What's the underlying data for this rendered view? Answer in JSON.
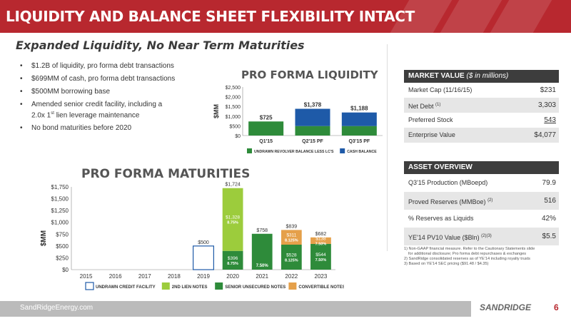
{
  "slide": {
    "title": "LIQUIDITY AND BALANCE SHEET FLEXIBILITY INTACT",
    "subtitle": "Expanded Liquidity, No Near Term Maturities",
    "bullets": [
      {
        "text": "$1.2B of liquidity, pro forma debt transactions"
      },
      {
        "text": "$699MM of cash, pro forma debt transactions"
      },
      {
        "text": "$500MM borrowing base"
      },
      {
        "text_pre": "Amended senior credit facility, including a",
        "text_a": "2.0x 1",
        "text_sup": "st",
        "text_b": " lien leverage maintenance"
      },
      {
        "text": "No bond maturities before 2020"
      }
    ],
    "footer": {
      "site": "SandRidgeEnergy.com",
      "logo": "SANDRIDGE",
      "page": "6"
    }
  },
  "market_value": {
    "header": "MARKET VALUE",
    "header_unit": "($ in millions)",
    "rows": [
      {
        "label": "Market Cap (11/16/15)",
        "sup": "",
        "value": "$231"
      },
      {
        "label": "Net Debt",
        "sup": "(1)",
        "value": "3,303"
      },
      {
        "label": "Preferred Stock",
        "sup": "",
        "value": "543"
      },
      {
        "label": "Enterprise Value",
        "sup": "",
        "value": "$4,077"
      }
    ]
  },
  "asset_overview": {
    "header": "ASSET OVERVIEW",
    "rows": [
      {
        "label": "Q3'15 Production (MBoepd)",
        "sup": "",
        "value": "79.9"
      },
      {
        "label": "Proved Reserves (MMBoe)",
        "sup": "(2)",
        "value": "516"
      },
      {
        "label": "% Reserves as Liquids",
        "sup": "",
        "value": "42%"
      },
      {
        "label": "YE'14 PV10 Value ($Bln)",
        "sup": "(2)(3)",
        "value": "$5.5"
      }
    ]
  },
  "notes": [
    "1) Non-GAAP financial measure. Refer to the Cautionary Statements slide",
    "    for additional disclosure; Pro forma debt repurchases & exchanges",
    "2) SandRidge consolidated reserves as of YE'14 including royalty trusts",
    "3) Based on YE'14 SEC pricing ($91.48 / $4.35)"
  ],
  "colors": {
    "red": "#b8282f",
    "green_dark": "#2e8b3a",
    "green_light": "#9ccc3c",
    "blue": "#1e5aa8",
    "orange": "#e5a04a",
    "panel": "#3d3d3d"
  },
  "chart_data": [
    {
      "type": "bar",
      "title": "PRO FORMA LIQUIDITY",
      "ylabel": "$MM",
      "ylim": [
        0,
        2500
      ],
      "yticks": [
        "$0",
        "$500",
        "$1,000",
        "$1,500",
        "$2,000",
        "$2,500"
      ],
      "categories": [
        "Q1'15",
        "Q2'15 PF",
        "Q3'15 PF"
      ],
      "series": [
        {
          "name": "UNDRAWN REVOLVER BALANCE LESS LC'S",
          "values": [
            725,
            489,
            489
          ],
          "color": "#2e8b3a"
        },
        {
          "name": "CASH BALANCE",
          "values": [
            0,
            889,
            699
          ],
          "color": "#1e5aa8"
        }
      ],
      "totals": [
        "$725",
        "$1,378",
        "$1,188"
      ]
    },
    {
      "type": "bar",
      "title": "PRO FORMA MATURITIES",
      "ylabel": "$MM",
      "ylim": [
        0,
        1750
      ],
      "yticks": [
        "$0",
        "$250",
        "$500",
        "$750",
        "$1,000",
        "$1,250",
        "$1,500",
        "$1,750"
      ],
      "categories": [
        "2015",
        "2016",
        "2017",
        "2018",
        "2019",
        "2020",
        "2021",
        "2022",
        "2023"
      ],
      "series": [
        {
          "name": "UNDRAWN CREDIT FACILITY",
          "values": [
            0,
            0,
            0,
            0,
            500,
            0,
            0,
            0,
            0
          ],
          "color": "#1e5aa8"
        },
        {
          "name": "2ND LIEN NOTES",
          "values": [
            0,
            0,
            0,
            0,
            0,
            1328,
            0,
            0,
            0
          ],
          "color": "#9ccc3c"
        },
        {
          "name": "SENIOR UNSECURED NOTES",
          "values": [
            0,
            0,
            0,
            0,
            0,
            396,
            758,
            528,
            544
          ],
          "color": "#2e8b3a"
        },
        {
          "name": "CONVERTIBLE NOTES",
          "values": [
            0,
            0,
            0,
            0,
            0,
            0,
            0,
            311,
            138
          ],
          "color": "#e5a04a"
        }
      ],
      "segment_labels": [
        {
          "year": "2020",
          "series": "SENIOR UNSECURED NOTES",
          "value": "$396",
          "rate": "8.75%"
        },
        {
          "year": "2020",
          "series": "2ND LIEN NOTES",
          "value": "$1,328",
          "rate": "8.75%"
        },
        {
          "year": "2021",
          "series": "SENIOR UNSECURED NOTES",
          "value": "",
          "rate": "7.50%"
        },
        {
          "year": "2022",
          "series": "SENIOR UNSECURED NOTES",
          "value": "$528",
          "rate": "8.125%"
        },
        {
          "year": "2022",
          "series": "CONVERTIBLE NOTES",
          "value": "$311",
          "rate": "8.125%"
        },
        {
          "year": "2023",
          "series": "SENIOR UNSECURED NOTES",
          "value": "$544",
          "rate": "7.50%"
        },
        {
          "year": "2023",
          "series": "CONVERTIBLE NOTES",
          "value": "$138",
          "rate": "7.50%"
        }
      ],
      "totals": [
        {
          "year": "2019",
          "label": "$500"
        },
        {
          "year": "2020",
          "label": "$1,724"
        },
        {
          "year": "2021",
          "label": "$758"
        },
        {
          "year": "2022",
          "label": "$839"
        },
        {
          "year": "2023",
          "label": "$682"
        }
      ]
    }
  ]
}
